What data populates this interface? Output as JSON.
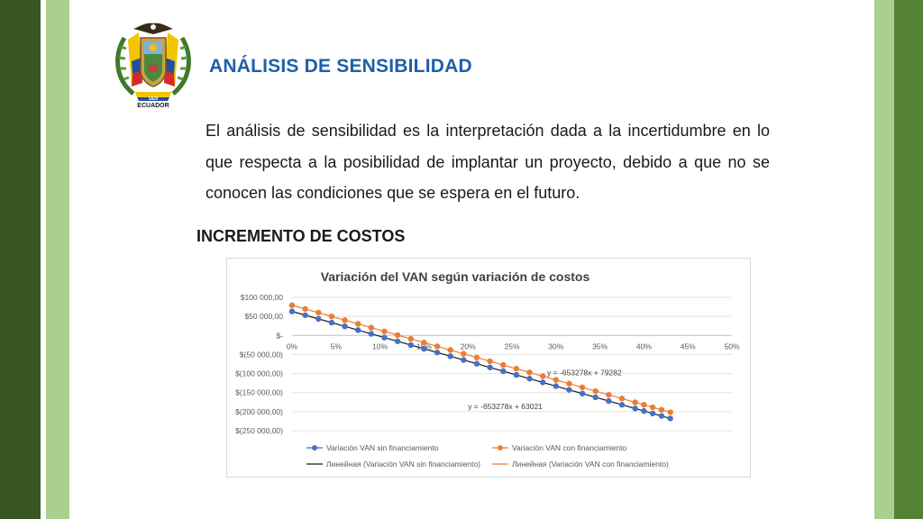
{
  "colors": {
    "bar_dark": "#375623",
    "bar_light": "#a9d08e",
    "bar_right": "#548235",
    "title_blue": "#1f5fa8",
    "series_blue": "#4472c4",
    "series_orange": "#ed7d31"
  },
  "logo": {
    "text": "ECUADOR",
    "icon": "coat-of-arms-icon"
  },
  "header": {
    "title": "ANÁLISIS DE SENSIBILIDAD"
  },
  "body": {
    "paragraph": "El análisis de sensibilidad es la interpretación dada a la incertidumbre en lo que respecta a la posibilidad de implantar un proyecto, debido a que no se conocen las condiciones que se espera en el futuro.",
    "section_title": "INCREMENTO DE COSTOS"
  },
  "chart_data": {
    "type": "scatter",
    "title": "Variación del VAN según variación de costos",
    "xlabel": "",
    "ylabel": "",
    "xlim": [
      0,
      0.5
    ],
    "ylim": [
      -250000,
      100000
    ],
    "x_ticks": [
      0,
      0.05,
      0.1,
      0.15,
      0.2,
      0.25,
      0.3,
      0.35,
      0.4,
      0.45,
      0.5
    ],
    "x_tick_labels": [
      "0%",
      "5%",
      "10%",
      "15%",
      "20%",
      "25%",
      "30%",
      "35%",
      "40%",
      "45%",
      "50%"
    ],
    "y_ticks": [
      100000,
      50000,
      0,
      -50000,
      -100000,
      -150000,
      -200000,
      -250000
    ],
    "y_tick_labels": [
      "$100 000,00",
      "$50 000,00",
      "$-",
      "$(50 000,00)",
      "$(100 000,00)",
      "$(150 000,00)",
      "$(200 000,00)",
      "$(250 000,00)"
    ],
    "grid": true,
    "legend_position": "bottom",
    "x": [
      0,
      0.015,
      0.03,
      0.045,
      0.06,
      0.075,
      0.09,
      0.105,
      0.12,
      0.135,
      0.15,
      0.165,
      0.18,
      0.195,
      0.21,
      0.225,
      0.24,
      0.255,
      0.27,
      0.285,
      0.3,
      0.315,
      0.33,
      0.345,
      0.36,
      0.375,
      0.39,
      0.4,
      0.41,
      0.42,
      0.43
    ],
    "series": [
      {
        "name": "Variación VAN sin financiamiento",
        "color": "#4472c4",
        "values": [
          63021,
          53222,
          43423,
          33624,
          23826,
          14027,
          4228,
          -5571,
          -15370,
          -25169,
          -34971,
          -44770,
          -54569,
          -64368,
          -74167,
          -83966,
          -93766,
          -103565,
          -113364,
          -123162,
          -132962,
          -142761,
          -152560,
          -162359,
          -172158,
          -181957,
          -191755,
          -198290,
          -204822,
          -211354,
          -217887
        ]
      },
      {
        "name": "Variación VAN con financiamiento",
        "color": "#ed7d31",
        "values": [
          79282,
          69483,
          59684,
          49885,
          40087,
          30288,
          20489,
          10690,
          891,
          -8908,
          -18710,
          -28509,
          -38308,
          -48107,
          -57906,
          -67705,
          -77505,
          -87304,
          -97103,
          -106901,
          -116701,
          -126500,
          -136299,
          -146098,
          -155897,
          -165696,
          -175494,
          -182029,
          -188561,
          -195093,
          -201626
        ]
      }
    ],
    "trendlines": [
      {
        "name": "Линейная (Variación VAN sin financiamiento)",
        "color": "#1a1a1a",
        "slope": -653278,
        "intercept": 63021,
        "equation": "y = -653278x + 63021",
        "label_at": [
          0.2,
          -193000
        ]
      },
      {
        "name": "Линейная (Variación VAN con financiamiento)",
        "color": "#ed7d31",
        "slope": -653278,
        "intercept": 79282,
        "equation": "y = -653278x + 79282",
        "label_at": [
          0.29,
          -104000
        ]
      }
    ]
  }
}
